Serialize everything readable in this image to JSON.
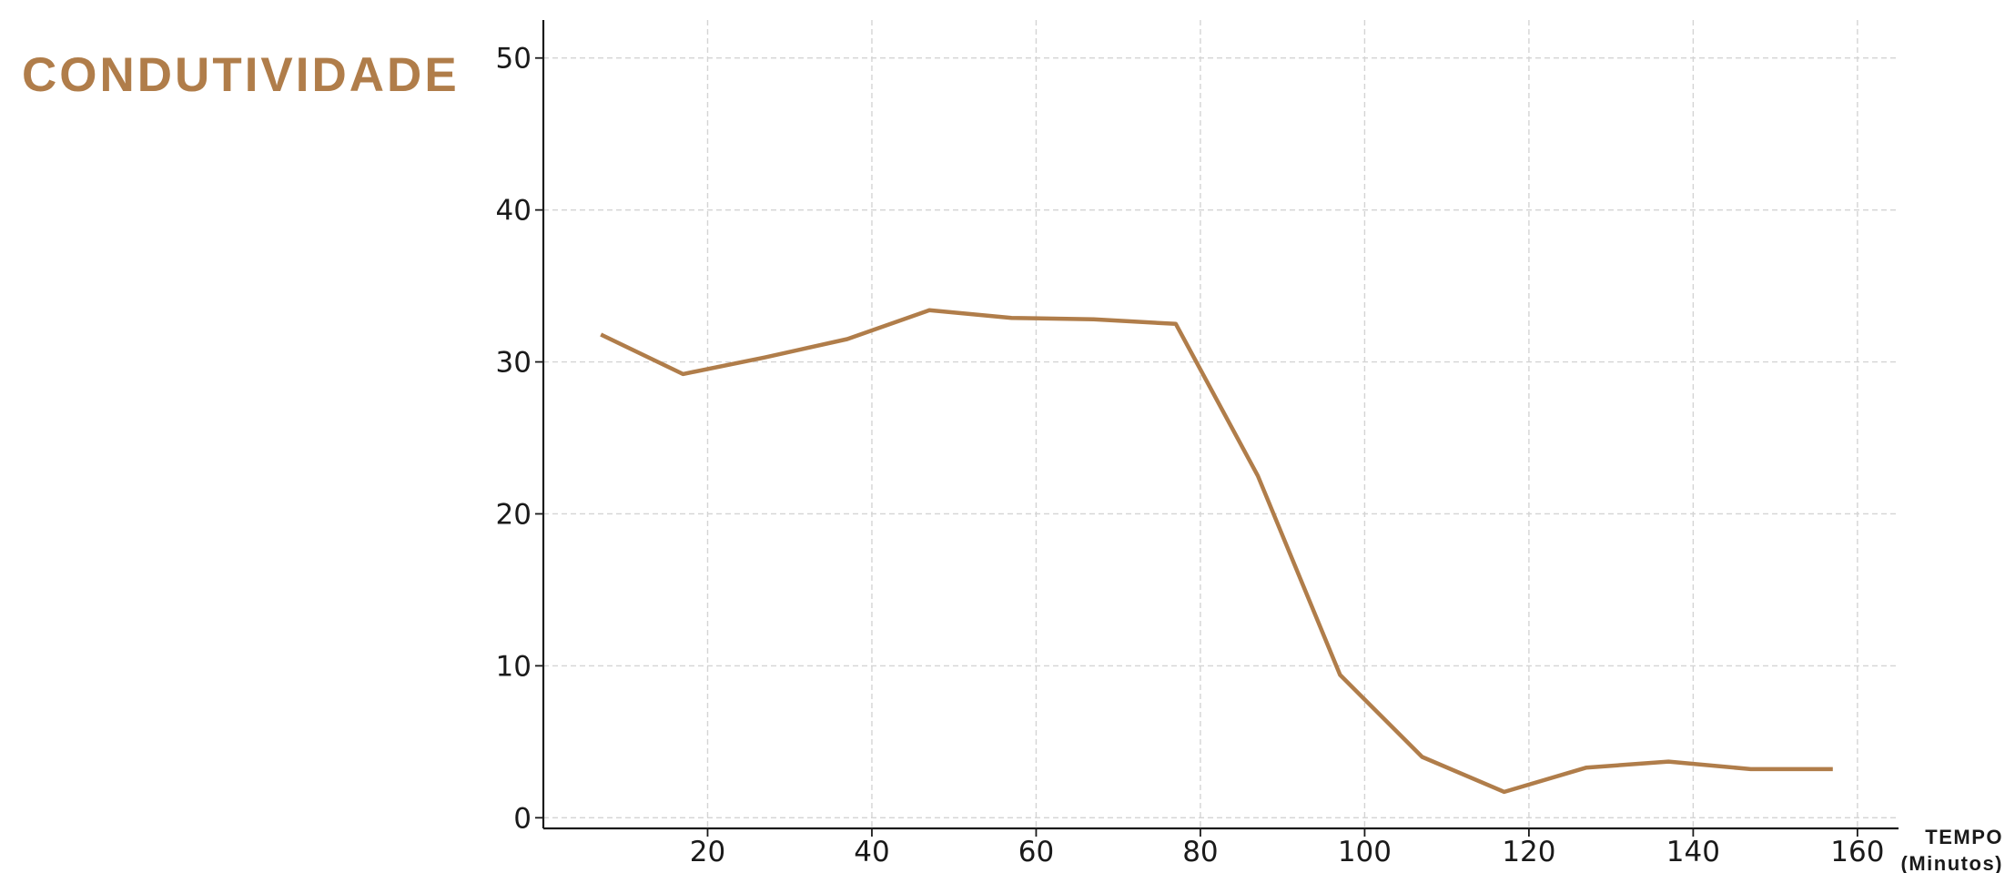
{
  "chart_data": {
    "type": "line",
    "title": "CONDUTIVIDADE",
    "xlabel_line1": "TEMPO",
    "xlabel_line2": "(Minutos)",
    "ylabel": "",
    "xlim": [
      0,
      165
    ],
    "ylim": [
      -0.7,
      52.5
    ],
    "x_ticks": [
      20,
      40,
      60,
      80,
      100,
      120,
      140,
      160
    ],
    "y_ticks": [
      0,
      10,
      20,
      30,
      40,
      50
    ],
    "grid": true,
    "color": "#b07d4a",
    "series": [
      {
        "x": [
          7,
          17,
          27,
          37,
          47,
          57,
          67,
          77,
          87,
          97,
          107,
          117,
          127,
          137,
          147,
          157
        ],
        "values": [
          31.8,
          29.2,
          30.3,
          31.5,
          33.4,
          32.9,
          32.8,
          32.5,
          22.5,
          9.4,
          4.0,
          1.7,
          3.3,
          3.7,
          3.2,
          3.2
        ]
      }
    ]
  }
}
